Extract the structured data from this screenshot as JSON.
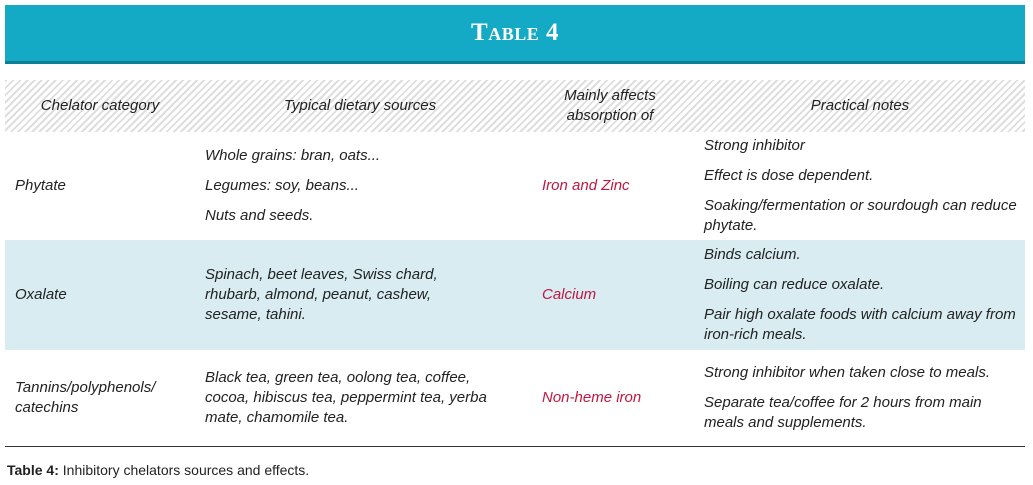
{
  "header": {
    "title": "Table 4"
  },
  "table": {
    "columns": [
      "Chelator category",
      "Typical dietary sources",
      "Mainly affects absorption of",
      "Practical notes"
    ],
    "rows": [
      {
        "category": "Phytate",
        "sources": [
          "Whole grains: bran, oats...",
          "Legumes: soy, beans...",
          "Nuts and seeds."
        ],
        "affects": "Iron and Zinc",
        "notes": [
          "Strong inhibitor",
          "Effect is dose dependent.",
          "Soaking/fermentation or sourdough can reduce phytate."
        ]
      },
      {
        "category": "Oxalate",
        "sources": [
          "Spinach, beet leaves, Swiss chard, rhubarb, almond, peanut, cashew, sesame, tahini."
        ],
        "affects": "Calcium",
        "notes": [
          "Binds calcium.",
          "Boiling can reduce oxalate.",
          "Pair high oxalate foods with calcium away from iron-rich meals."
        ]
      },
      {
        "category": "Tannins/polyphenols/ catechins",
        "sources": [
          "Black tea, green tea, oolong tea, coffee, cocoa, hibiscus tea, peppermint tea, yerba mate, chamomile tea."
        ],
        "affects": "Non-heme iron",
        "notes": [
          "Strong inhibitor when taken close to meals.",
          "Separate tea/coffee for 2 hours from main meals and supplements."
        ]
      }
    ]
  },
  "caption": {
    "label": "Table 4:",
    "text": "Inhibitory chelators sources and effects."
  }
}
